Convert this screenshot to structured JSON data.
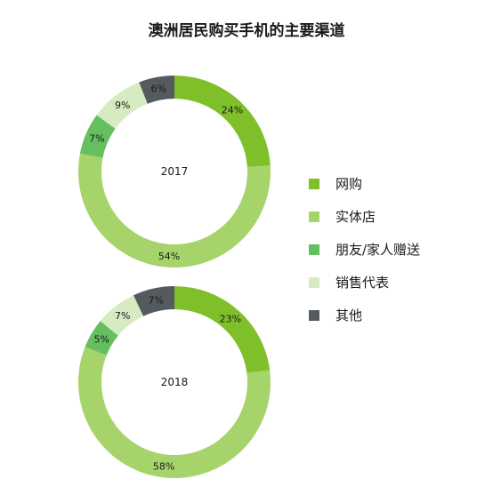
{
  "chart_data": {
    "type": "pie",
    "title": "澳洲居民购买手机的主要渠道",
    "categories": [
      "网购",
      "实体店",
      "朋友/家人赠送",
      "销售代表",
      "其他"
    ],
    "colors": [
      "#7fbf2a",
      "#a6d46b",
      "#66bf5e",
      "#d6ebc1",
      "#555a5e"
    ],
    "charts": [
      {
        "label": "2017",
        "values": [
          24,
          54,
          7,
          9,
          6
        ]
      },
      {
        "label": "2018",
        "values": [
          23,
          58,
          5,
          7,
          7
        ]
      }
    ],
    "legend_position": "right"
  }
}
